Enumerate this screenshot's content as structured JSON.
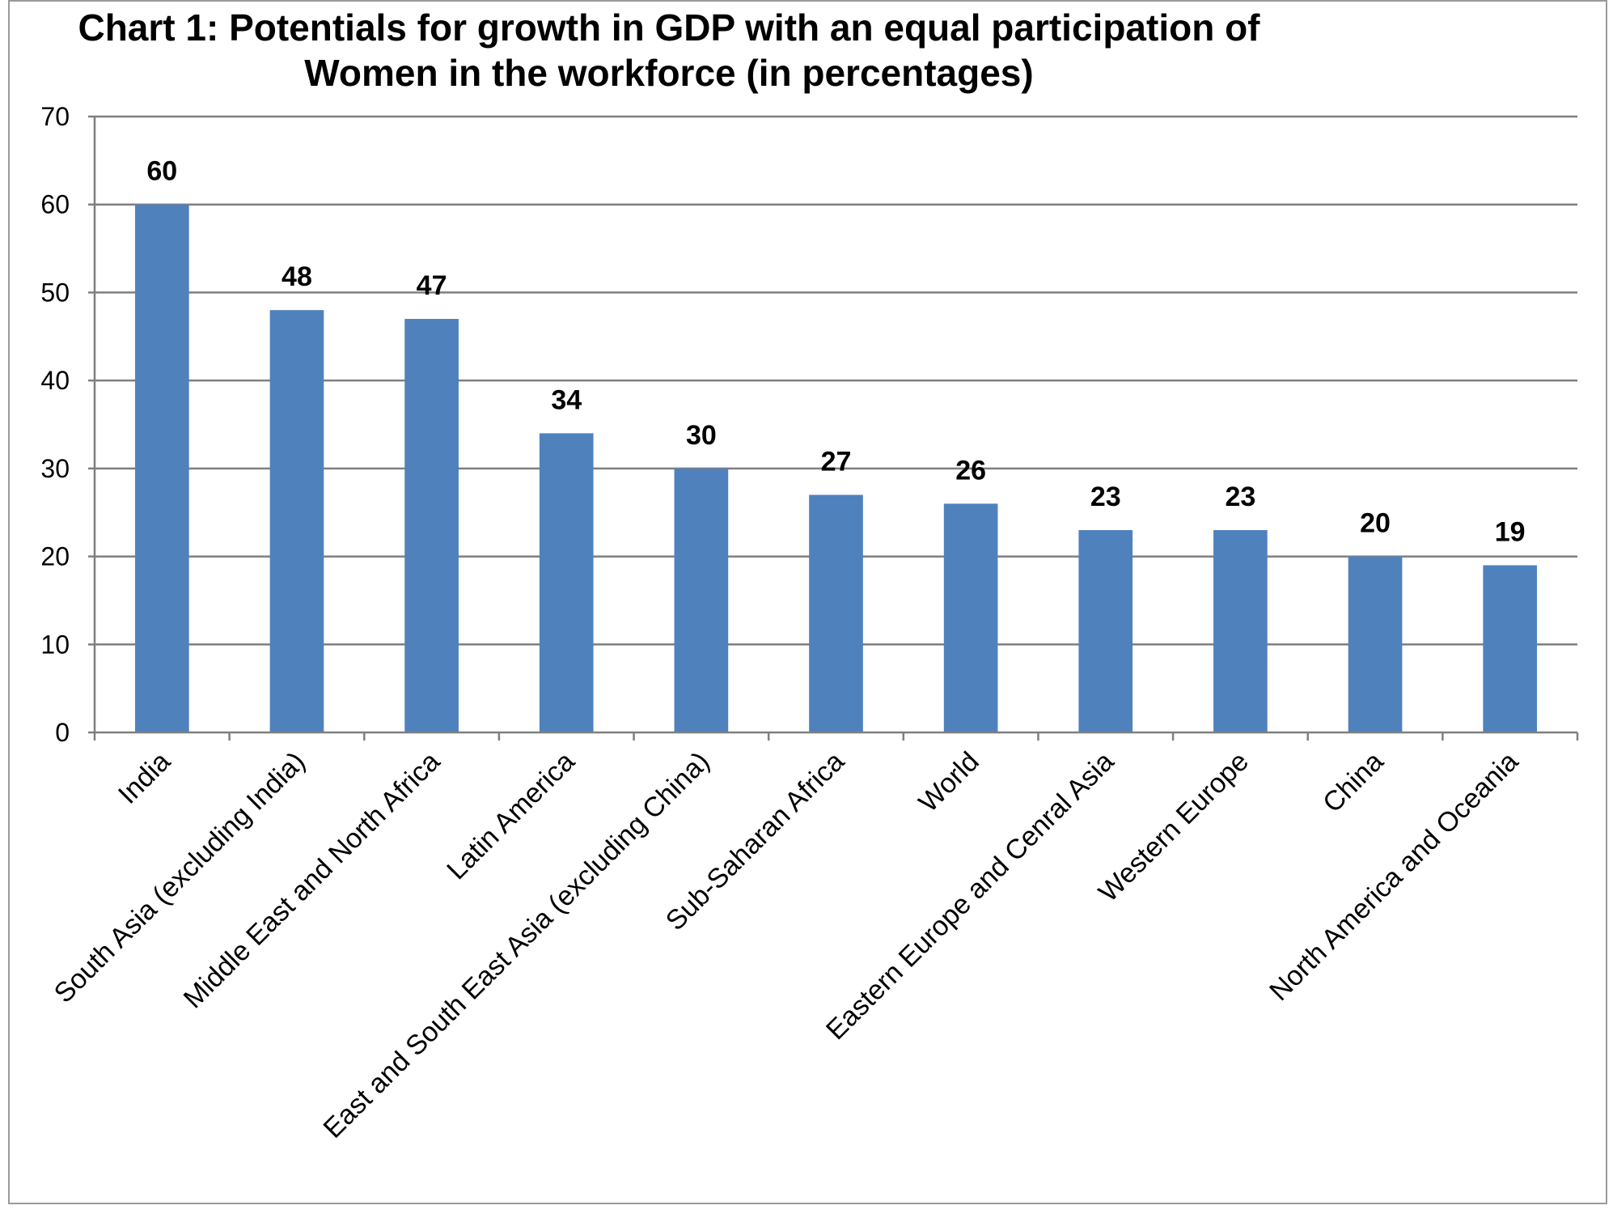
{
  "chart_data": {
    "type": "bar",
    "title": "Chart 1: Potentials for growth in GDP with an equal participation of Women in the workforce (in percentages)",
    "title_lines": [
      "Chart 1: Potentials for growth in GDP with an equal participation of",
      "Women in the workforce (in percentages)"
    ],
    "xlabel": "",
    "ylabel": "",
    "ylim": [
      0,
      70
    ],
    "yticks": [
      0,
      10,
      20,
      30,
      40,
      50,
      60,
      70
    ],
    "grid": true,
    "legend": "none",
    "bar_color": "#4f81bd",
    "categories": [
      "India",
      "South Asia (excluding India)",
      "Middle East and North Africa",
      "Latin America",
      "East and South East Asia (excluding China)",
      "Sub-Saharan Africa",
      "World",
      "Eastern Europe and Cenral Asia",
      "Western Europe",
      "China",
      "North America and Oceania"
    ],
    "values": [
      60,
      48,
      47,
      34,
      30,
      27,
      26,
      23,
      23,
      20,
      19
    ]
  }
}
